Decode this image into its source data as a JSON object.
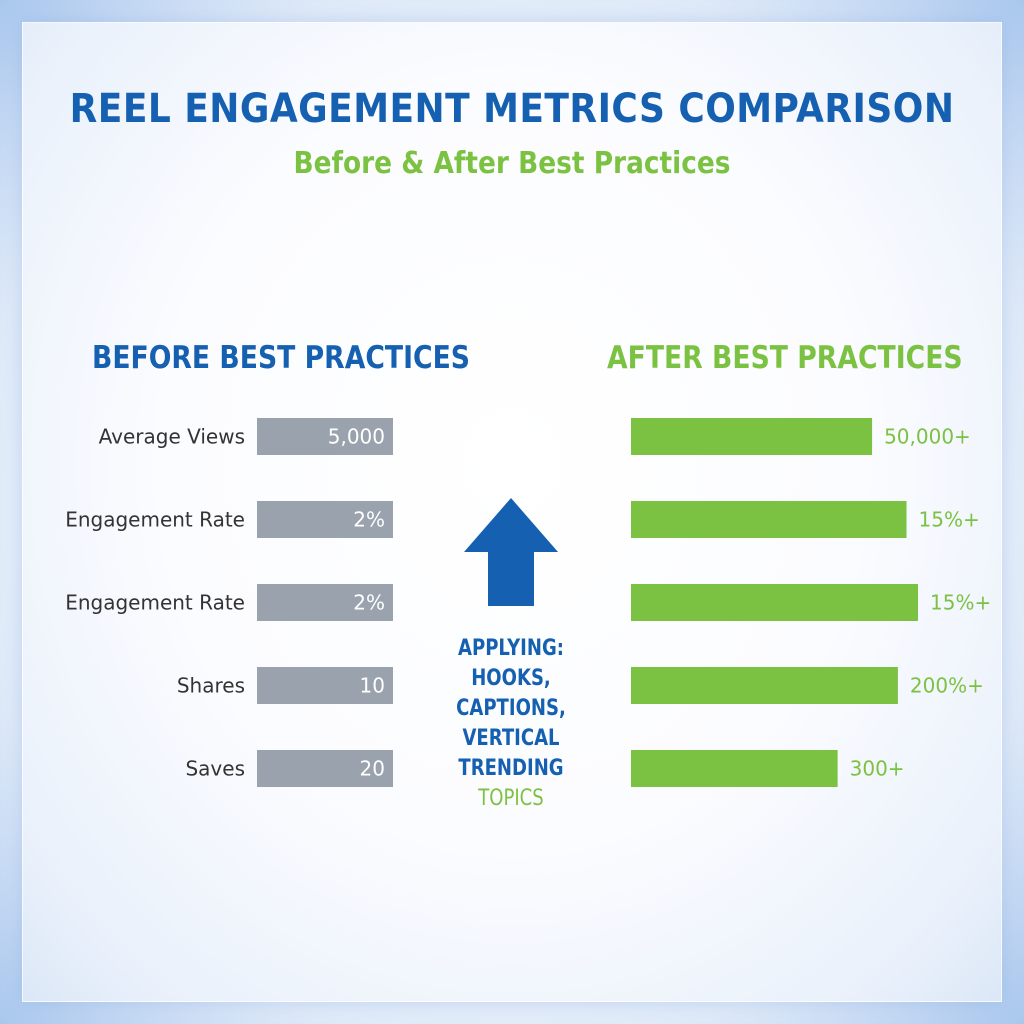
{
  "chart_data": {
    "type": "bar",
    "title": "REEL ENGAGEMENT METRICS COMPARISON",
    "subtitle": "Before & After Best Practices",
    "before_heading": "BEFORE BEST PRACTICES",
    "after_heading": "AFTER BEST PRACTICES",
    "categories": [
      "Average Views",
      "Engagement Rate",
      "Engagement Rate",
      "Shares",
      "Saves"
    ],
    "series": [
      {
        "name": "Before Best Practices",
        "color": "#9aa3ad",
        "labels": [
          "5,000",
          "2%",
          "2%",
          "10",
          "20"
        ],
        "bar_fraction": [
          1,
          1,
          1,
          1,
          1
        ]
      },
      {
        "name": "After Best Practices",
        "color": "#7cc242",
        "labels": [
          "50,000+",
          "15%+",
          "15%+",
          "200%+",
          "300+"
        ],
        "bar_fraction": [
          0.84,
          0.96,
          1.0,
          0.93,
          0.72
        ]
      }
    ],
    "center_note": {
      "icon": "up-arrow-icon",
      "lines": [
        "APPLYING:",
        "HOOKS,",
        "CAPTIONS,",
        "VERTICAL",
        "TRENDING"
      ],
      "highlight_line": "TOPICS"
    },
    "colors": {
      "blue": "#1560b0",
      "green": "#7cc242",
      "gray": "#9aa3ad"
    }
  }
}
